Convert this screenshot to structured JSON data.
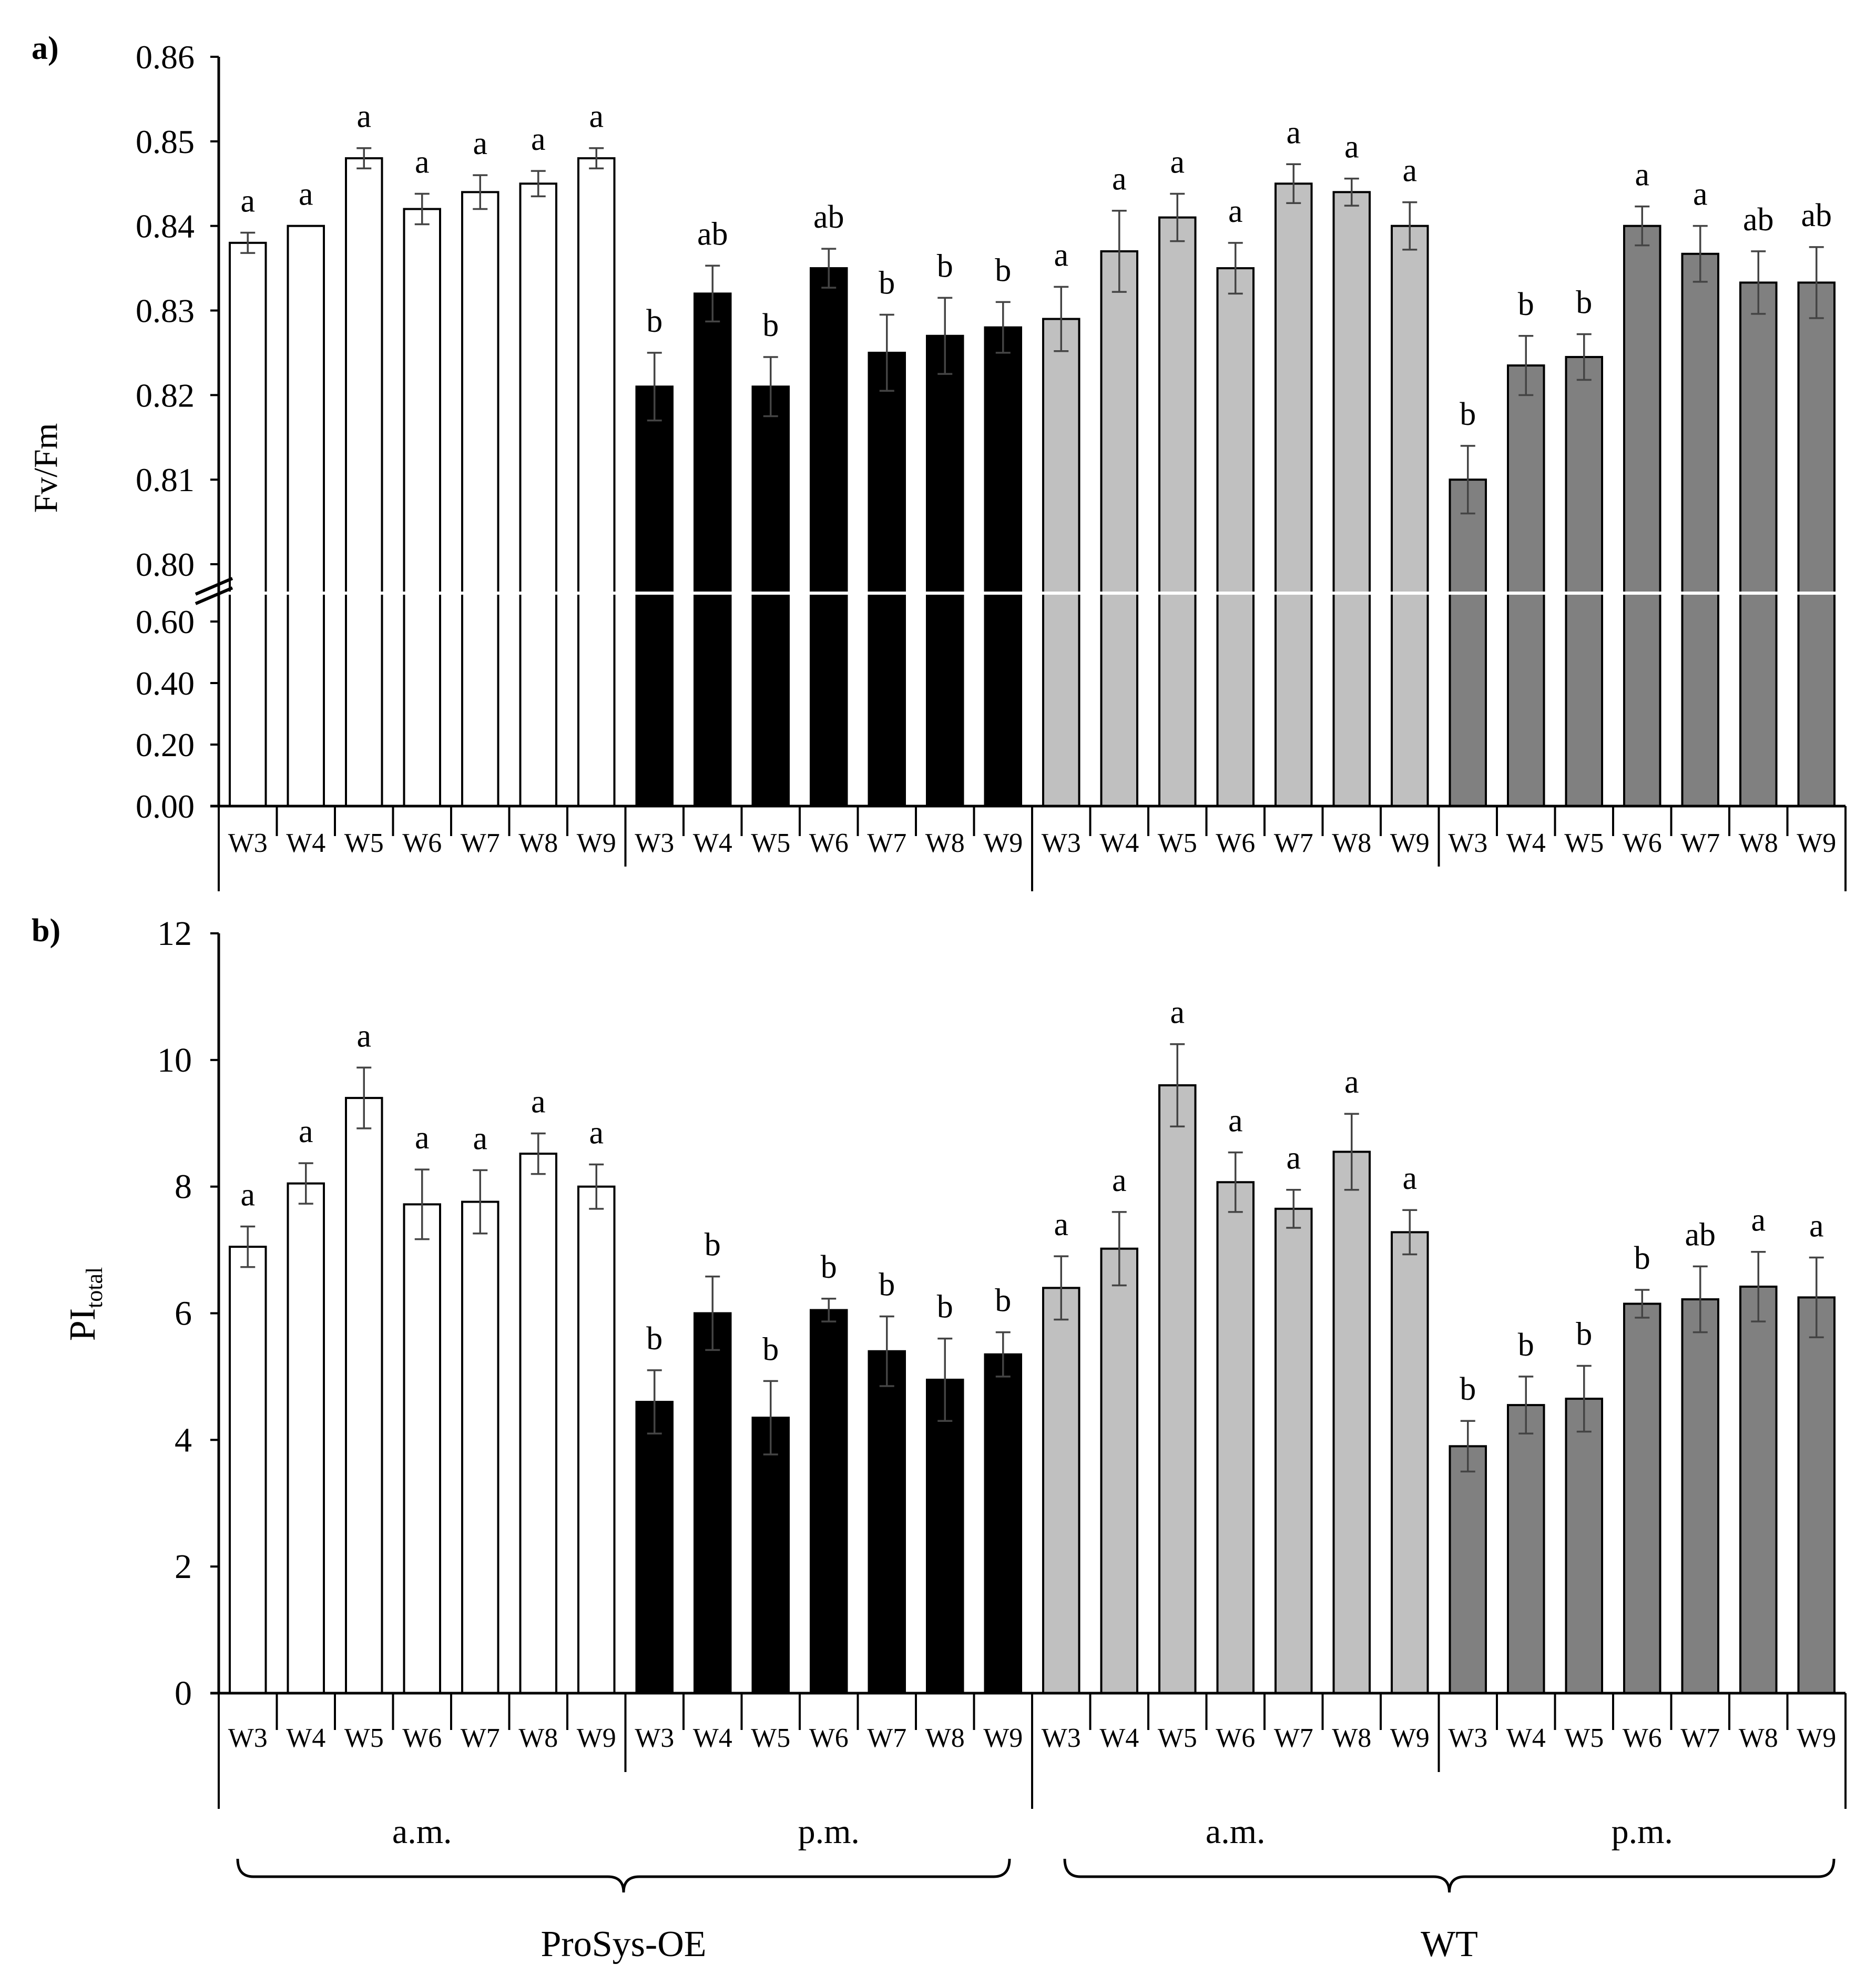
{
  "colors": {
    "prosys_am": "#ffffff",
    "prosys_pm": "#000000",
    "wt_am": "#c0c0c0",
    "wt_pm": "#808080",
    "bar_stroke": "#000000",
    "error_bar": "#444444",
    "axis": "#000000",
    "break_band": "#ffffff"
  },
  "chart_data": [
    {
      "type": "bar",
      "panel_label": "a)",
      "ylabel": "Fv/Fm",
      "yticks_upper": [
        "0.86",
        "0.85",
        "0.84",
        "0.83",
        "0.82",
        "0.81",
        "0.80"
      ],
      "yticks_lower": [
        "0.60",
        "0.40",
        "0.20",
        "0.00"
      ],
      "upper_range": [
        0.8,
        0.86
      ],
      "lower_range": [
        0.0,
        0.6
      ],
      "axis_break": "between 0.60 and 0.80",
      "categories": [
        "W3",
        "W4",
        "W5",
        "W6",
        "W7",
        "W8",
        "W9"
      ],
      "series": [
        {
          "name": "ProSys-OE a.m.",
          "values": [
            0.838,
            0.84,
            0.848,
            0.842,
            0.844,
            0.845,
            0.848
          ],
          "errors": [
            0.0012,
            0.0,
            0.0012,
            0.0018,
            0.002,
            0.0015,
            0.0012
          ],
          "letters": [
            "a",
            "a",
            "a",
            "a",
            "a",
            "a",
            "a"
          ]
        },
        {
          "name": "ProSys-OE p.m.",
          "values": [
            0.821,
            0.832,
            0.821,
            0.835,
            0.825,
            0.827,
            0.828
          ],
          "errors": [
            0.004,
            0.0033,
            0.0035,
            0.0023,
            0.0045,
            0.0045,
            0.003
          ],
          "letters": [
            "b",
            "ab",
            "b",
            "ab",
            "b",
            "b",
            "b"
          ]
        },
        {
          "name": "WT a.m.",
          "values": [
            0.829,
            0.837,
            0.841,
            0.835,
            0.845,
            0.844,
            0.84
          ],
          "errors": [
            0.0038,
            0.0048,
            0.0028,
            0.003,
            0.0023,
            0.0016,
            0.0028
          ],
          "letters": [
            "a",
            "a",
            "a",
            "a",
            "a",
            "a",
            "a"
          ]
        },
        {
          "name": "WT p.m.",
          "values": [
            0.81,
            0.8235,
            0.8245,
            0.84,
            0.8367,
            0.8333,
            0.8333
          ],
          "errors": [
            0.004,
            0.0035,
            0.0027,
            0.0023,
            0.0033,
            0.0037,
            0.0042
          ],
          "letters": [
            "b",
            "b",
            "b",
            "a",
            "a",
            "ab",
            "ab"
          ]
        }
      ]
    },
    {
      "type": "bar",
      "panel_label": "b)",
      "ylabel_main": "PI",
      "ylabel_sub": "total",
      "yticks": [
        "12",
        "10",
        "8",
        "6",
        "4",
        "2",
        "0"
      ],
      "ylim": [
        0,
        12
      ],
      "categories": [
        "W3",
        "W4",
        "W5",
        "W6",
        "W7",
        "W8",
        "W9"
      ],
      "series": [
        {
          "name": "ProSys-OE a.m.",
          "values": [
            7.05,
            8.05,
            9.4,
            7.72,
            7.76,
            8.52,
            8.0
          ],
          "errors": [
            0.32,
            0.32,
            0.48,
            0.55,
            0.5,
            0.32,
            0.35
          ],
          "letters": [
            "a",
            "a",
            "a",
            "a",
            "a",
            "a",
            "a"
          ]
        },
        {
          "name": "ProSys-OE p.m.",
          "values": [
            4.6,
            6.0,
            4.35,
            6.05,
            5.4,
            4.95,
            5.35
          ],
          "errors": [
            0.5,
            0.58,
            0.58,
            0.18,
            0.55,
            0.65,
            0.35
          ],
          "letters": [
            "b",
            "b",
            "b",
            "b",
            "b",
            "b",
            "b"
          ]
        },
        {
          "name": "WT a.m.",
          "values": [
            6.4,
            7.02,
            9.6,
            8.07,
            7.65,
            8.55,
            7.28
          ],
          "errors": [
            0.5,
            0.58,
            0.65,
            0.47,
            0.3,
            0.6,
            0.35
          ],
          "letters": [
            "a",
            "a",
            "a",
            "a",
            "a",
            "a",
            "a"
          ]
        },
        {
          "name": "WT p.m.",
          "values": [
            3.9,
            4.55,
            4.65,
            6.15,
            6.22,
            6.42,
            6.25
          ],
          "errors": [
            0.4,
            0.45,
            0.52,
            0.22,
            0.52,
            0.55,
            0.63
          ],
          "letters": [
            "b",
            "b",
            "b",
            "b",
            "ab",
            "a",
            "a"
          ]
        }
      ]
    }
  ],
  "groups": {
    "time_labels": [
      "a.m.",
      "p.m.",
      "a.m.",
      "p.m."
    ],
    "genotypes": [
      "ProSys-OE",
      "WT"
    ]
  }
}
